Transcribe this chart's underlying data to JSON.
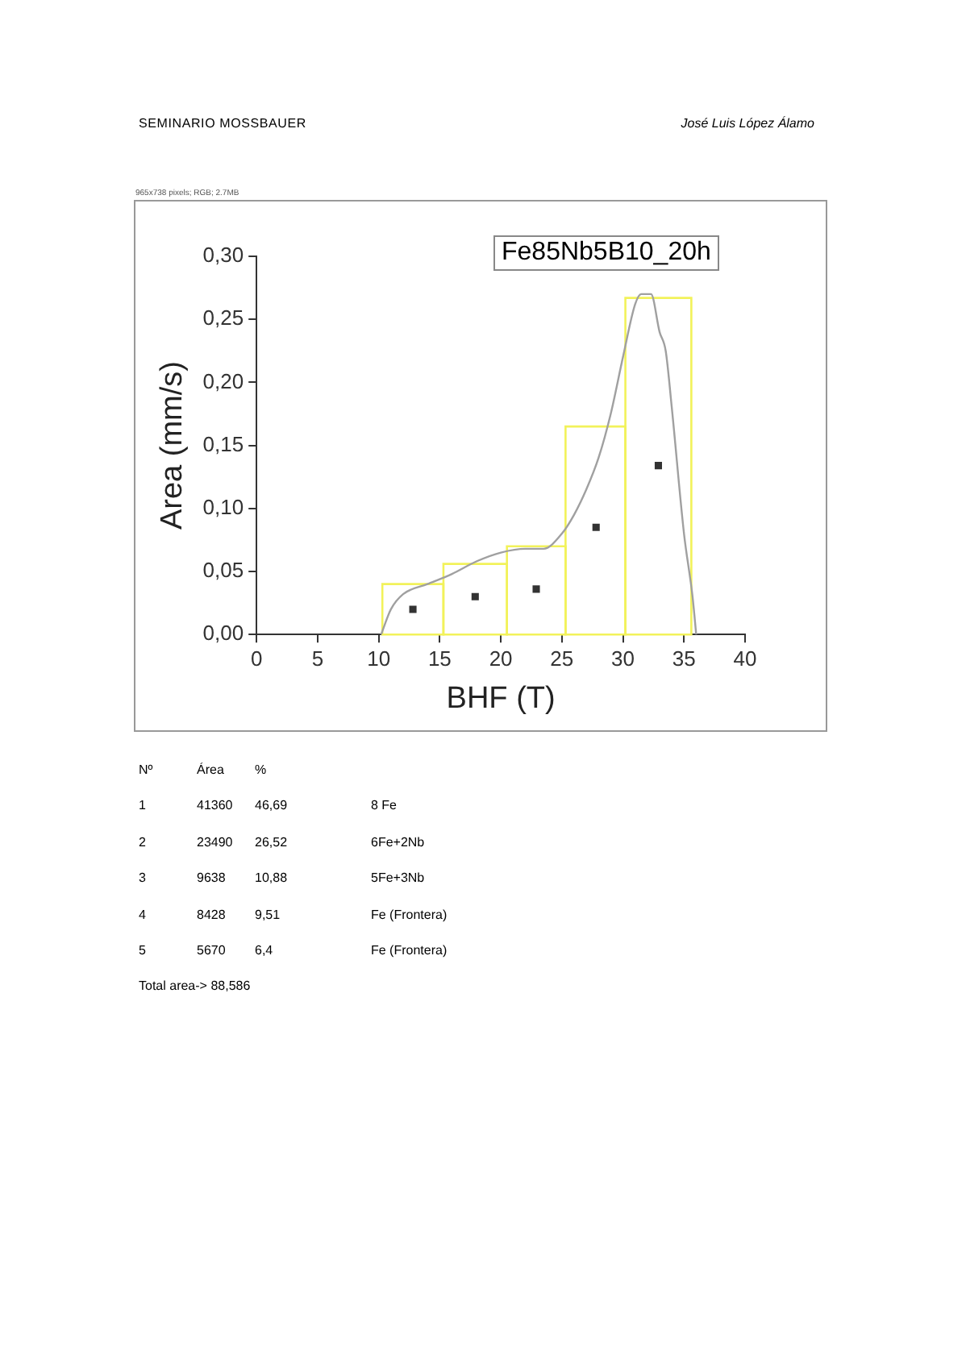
{
  "chart_data": {
    "type": "histogram",
    "title": "Fe85Nb5B10_20h",
    "xlabel": "BHF (T)",
    "ylabel": "Area (mm/s)",
    "xlim": [
      0,
      40
    ],
    "xticks": [
      0,
      5,
      10,
      15,
      20,
      25,
      30,
      35,
      40
    ],
    "ylim": [
      0,
      0.3
    ],
    "yticks": [
      {
        "value": 0,
        "label": "0,00"
      },
      {
        "value": 0.05,
        "label": "0,05"
      },
      {
        "value": 0.1,
        "label": "0,10"
      },
      {
        "value": 0.15,
        "label": "0,15"
      },
      {
        "value": 0.2,
        "label": "0,20"
      },
      {
        "value": 0.25,
        "label": "0,25"
      },
      {
        "value": 0.3,
        "label": "0,30"
      }
    ],
    "grid": false,
    "legend": false,
    "series": [
      {
        "type": "histogram",
        "color": "#f2f25a",
        "bins": [
          10.3,
          15.3,
          20.5,
          25.3,
          30.2,
          35.6
        ],
        "values": [
          0.04,
          0.056,
          0.07,
          0.165,
          0.267
        ]
      },
      {
        "type": "line",
        "color": "#a0a0a0",
        "marker": "none",
        "x": [
          10.2,
          11,
          12,
          14,
          16,
          18,
          20,
          22,
          23.5,
          25,
          26,
          27,
          28,
          29,
          30,
          31,
          31.5,
          32.3,
          33,
          33.5,
          34,
          35,
          35.7,
          36
        ],
        "values": [
          0,
          0.02,
          0.032,
          0.04,
          0.048,
          0.058,
          0.065,
          0.068,
          0.068,
          0.08,
          0.095,
          0.115,
          0.14,
          0.175,
          0.22,
          0.262,
          0.27,
          0.27,
          0.24,
          0.225,
          0.18,
          0.08,
          0.03,
          0
        ]
      },
      {
        "type": "scatter",
        "color": "#333333",
        "marker": "square",
        "x": [
          12.8,
          17.9,
          22.9,
          27.8,
          32.9
        ],
        "values": [
          0.02,
          0.03,
          0.036,
          0.085,
          0.134
        ]
      }
    ],
    "annotations": [
      "SEMINARIO MOSSBAUER",
      "José Luis López Álamo",
      "965x738 pixels; RGB; 2.7MB",
      "Nº\tÁrea\t%",
      "1\t41360\t46,69\t\t8 Fe",
      "2\t23490\t26,52\t\t6Fe+2Nb",
      "3\t9638\t10,88\t\t5Fe+3Nb",
      "4\t8428\t9,51\t\tFe (Frontera)",
      "5\t5670\t6,4\t\tFe (Frontera)",
      "Total area-> 88,586"
    ]
  }
}
